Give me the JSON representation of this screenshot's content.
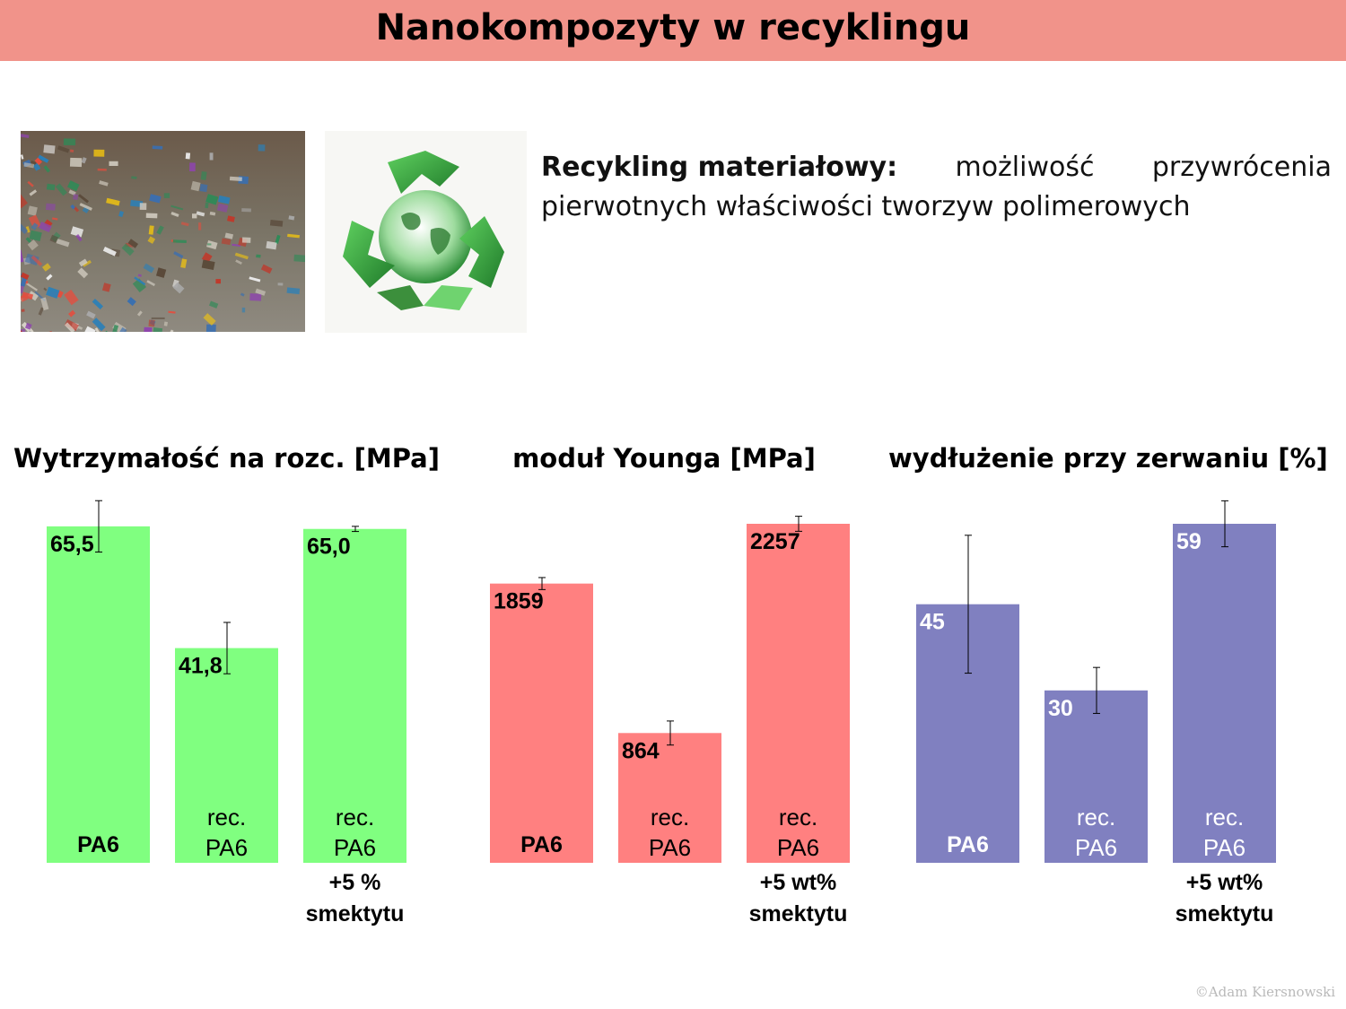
{
  "header": {
    "title": "Nanokompozyty w recyklingu"
  },
  "description": {
    "bold": "Recykling materiałowy:",
    "line1_rest": [
      "możliwość",
      "przywrócenia"
    ],
    "line2": "pierwotnych właściwości tworzyw polimerowych"
  },
  "credit": "©Adam Kiersnowski",
  "colors": {
    "header": "#f1938a",
    "green": "#80ff80",
    "red": "#ff8080",
    "purple": "#8080c0"
  },
  "icons": [
    "plastic-waste-photo",
    "recycle-globe-icon"
  ],
  "chart_data": [
    {
      "type": "bar",
      "title": "Wytrzymałość na rozc. [MPa]",
      "color": "#80ff80",
      "value_label_color": "#000000",
      "categories": [
        [
          "PA6"
        ],
        [
          "rec.",
          "PA6"
        ],
        [
          "rec.",
          "PA6"
        ]
      ],
      "below_labels": [
        "",
        "",
        "+5 %\nsmektytu"
      ],
      "values": [
        65.5,
        41.8,
        65.0
      ],
      "value_labels": [
        "65,5",
        "41,8",
        "65,0"
      ],
      "errors": [
        5,
        5,
        0.5
      ],
      "ylim": [
        0,
        66
      ]
    },
    {
      "type": "bar",
      "title": "moduł Younga [MPa]",
      "color": "#ff8080",
      "value_label_color": "#000000",
      "categories": [
        [
          "PA6"
        ],
        [
          "rec.",
          "PA6"
        ],
        [
          "rec.",
          "PA6"
        ]
      ],
      "below_labels": [
        "",
        "",
        "+5 wt%\nsmektytu"
      ],
      "values": [
        1859,
        864,
        2257
      ],
      "value_labels": [
        "1859",
        "864",
        "2257"
      ],
      "errors": [
        40,
        80,
        50
      ],
      "ylim": [
        0,
        2257
      ]
    },
    {
      "type": "bar",
      "title": "wydłużenie przy zerwaniu [%]",
      "color": "#8080c0",
      "value_label_color": "#ffffff",
      "categories": [
        [
          "PA6"
        ],
        [
          "rec.",
          "PA6"
        ],
        [
          "rec.",
          "PA6"
        ]
      ],
      "below_labels": [
        "",
        "",
        "+5 wt%\nsmektytu"
      ],
      "values": [
        45,
        30,
        59
      ],
      "value_labels": [
        "45",
        "30",
        "59"
      ],
      "errors": [
        12,
        4,
        4
      ],
      "ylim": [
        0,
        59
      ]
    }
  ]
}
